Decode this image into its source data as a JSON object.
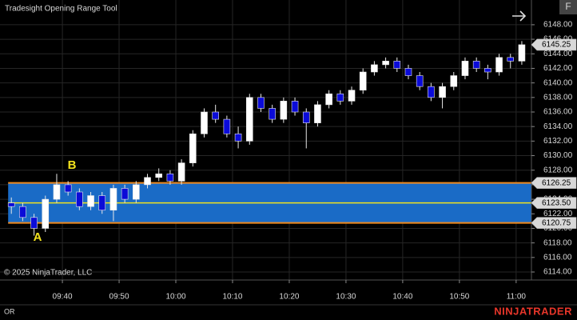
{
  "chart_data": {
    "type": "candlestick",
    "title": "Tradesight Opening Range Tool",
    "copyright": "© 2025 NinjaTrader, LLC",
    "tab_label": "OR",
    "brand": "NINJATRADER",
    "button_label": "F",
    "x": [
      31,
      33,
      35,
      37,
      39,
      41,
      43,
      45,
      47,
      49,
      51,
      53,
      55,
      57,
      59,
      61,
      63,
      65,
      67,
      69,
      71,
      73,
      75,
      77,
      79,
      81,
      83,
      85,
      87,
      89,
      91,
      93,
      95,
      97,
      99,
      101,
      103,
      105,
      107,
      109,
      111,
      113,
      115,
      117,
      119,
      121
    ],
    "ohlc": [
      [
        6123.5,
        6124.25,
        6122,
        6123
      ],
      [
        6123,
        6123.5,
        6121,
        6121.5
      ],
      [
        6121.5,
        6122,
        6119,
        6120
      ],
      [
        6120,
        6124.5,
        6119.5,
        6124
      ],
      [
        6124,
        6127.5,
        6123.5,
        6126
      ],
      [
        6126,
        6126.5,
        6124.5,
        6125
      ],
      [
        6125,
        6125.5,
        6122.5,
        6123
      ],
      [
        6123,
        6125,
        6122.5,
        6124.5
      ],
      [
        6124.5,
        6125,
        6122,
        6122.5
      ],
      [
        6122.5,
        6126,
        6121,
        6125.5
      ],
      [
        6125.5,
        6126,
        6123.5,
        6124
      ],
      [
        6124,
        6126.5,
        6123.5,
        6126
      ],
      [
        6126,
        6127.5,
        6125.5,
        6127
      ],
      [
        6127,
        6128.25,
        6126.5,
        6127.5
      ],
      [
        6127.5,
        6128,
        6126,
        6126.5
      ],
      [
        6126.5,
        6129.5,
        6126,
        6129
      ],
      [
        6129,
        6133.5,
        6128.5,
        6133
      ],
      [
        6133,
        6136.5,
        6132.5,
        6136
      ],
      [
        6136,
        6137,
        6134.5,
        6135
      ],
      [
        6135,
        6135.5,
        6132.5,
        6133
      ],
      [
        6133,
        6134,
        6131,
        6132
      ],
      [
        6132,
        6138.5,
        6131.5,
        6138
      ],
      [
        6138,
        6138.5,
        6136,
        6136.5
      ],
      [
        6136.5,
        6137,
        6134.5,
        6135
      ],
      [
        6135,
        6138,
        6134.5,
        6137.5
      ],
      [
        6137.5,
        6138,
        6135.5,
        6136
      ],
      [
        6136,
        6136.5,
        6131,
        6134.5
      ],
      [
        6134.5,
        6137.5,
        6134,
        6137
      ],
      [
        6137,
        6139,
        6136.5,
        6138.5
      ],
      [
        6138.5,
        6139,
        6137,
        6137.5
      ],
      [
        6137.5,
        6139.5,
        6137,
        6139
      ],
      [
        6139,
        6142,
        6138.5,
        6141.5
      ],
      [
        6141.5,
        6143,
        6141,
        6142.5
      ],
      [
        6142.5,
        6143.5,
        6142,
        6143
      ],
      [
        6143,
        6143.5,
        6141.5,
        6142
      ],
      [
        6142,
        6142.5,
        6140.5,
        6141
      ],
      [
        6141,
        6141.5,
        6139,
        6139.5
      ],
      [
        6139.5,
        6140,
        6137.5,
        6138
      ],
      [
        6138,
        6140,
        6136.5,
        6139.5
      ],
      [
        6139.5,
        6141.5,
        6139,
        6141
      ],
      [
        6141,
        6143.5,
        6140.5,
        6143
      ],
      [
        6143,
        6143.5,
        6141.5,
        6142
      ],
      [
        6142,
        6142.5,
        6140.5,
        6141.5
      ],
      [
        6141.5,
        6144,
        6141,
        6143.5
      ],
      [
        6143.5,
        6144,
        6142,
        6143
      ],
      [
        6143,
        6145.75,
        6142.5,
        6145.25
      ]
    ],
    "up_color": "#ffffff",
    "down_color": "#0b0bd8",
    "opening_range": {
      "high": 6126.25,
      "mid": 6123.5,
      "low": 6120.75,
      "mid_label": "6123.50",
      "start": 31,
      "fill": "#1a6bc6",
      "border_color": "#f08a1e",
      "mid_color": "#f2e21e"
    },
    "annotations": [
      "A",
      "B"
    ],
    "xlim": [
      29,
      122.7
    ],
    "ylim": [
      6112.9,
      6151.4
    ],
    "xticks": [
      {
        "value": 40,
        "label": "09:40"
      },
      {
        "value": 50,
        "label": "09:50"
      },
      {
        "value": 60,
        "label": "10:00"
      },
      {
        "value": 70,
        "label": "10:10"
      },
      {
        "value": 80,
        "label": "10:20"
      },
      {
        "value": 90,
        "label": "10:30"
      },
      {
        "value": 100,
        "label": "10:40"
      },
      {
        "value": 110,
        "label": "10:50"
      },
      {
        "value": 120,
        "label": "11:00"
      }
    ],
    "yticks": [
      {
        "value": 6114,
        "label": "6114.00"
      },
      {
        "value": 6116,
        "label": "6116.00"
      },
      {
        "value": 6118,
        "label": "6118.00"
      },
      {
        "value": 6120,
        "label": "6120.00"
      },
      {
        "value": 6122,
        "label": "6122.00"
      },
      {
        "value": 6124,
        "label": "6124.00"
      },
      {
        "value": 6126,
        "label": "6126.00"
      },
      {
        "value": 6128,
        "label": "6128.00"
      },
      {
        "value": 6130,
        "label": "6130.00"
      },
      {
        "value": 6132,
        "label": "6132.00"
      },
      {
        "value": 6134,
        "label": "6134.00"
      },
      {
        "value": 6136,
        "label": "6136.00"
      },
      {
        "value": 6138,
        "label": "6138.00"
      },
      {
        "value": 6140,
        "label": "6140.00"
      },
      {
        "value": 6142,
        "label": "6142.00"
      },
      {
        "value": 6144,
        "label": "6144.00"
      },
      {
        "value": 6146,
        "label": "6146.00"
      },
      {
        "value": 6148,
        "label": "6148.00"
      }
    ],
    "grid": true
  }
}
